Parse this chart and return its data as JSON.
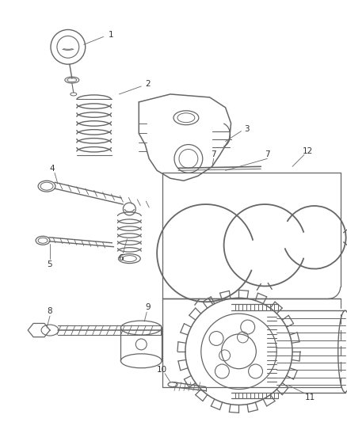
{
  "background_color": "#ffffff",
  "line_color": "#666666",
  "label_color": "#333333",
  "figsize": [
    4.39,
    5.33
  ],
  "dpi": 100
}
